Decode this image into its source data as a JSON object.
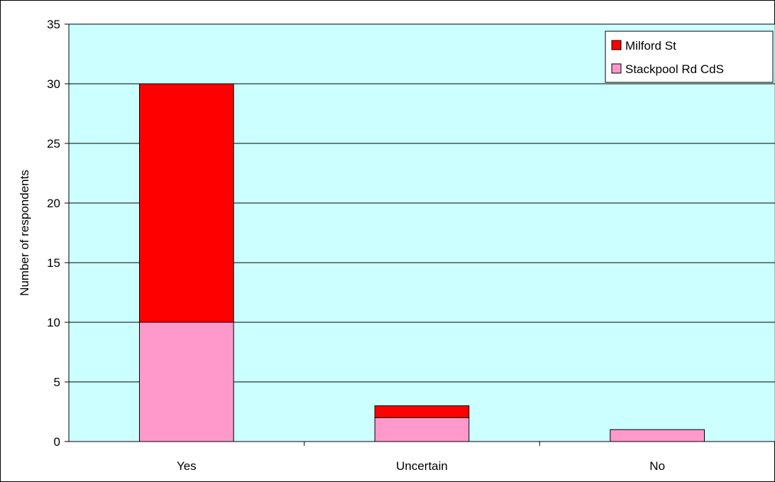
{
  "chart_data": {
    "type": "bar",
    "stacked": true,
    "categories": [
      "Yes",
      "Uncertain",
      "No"
    ],
    "series": [
      {
        "name": "Stackpool Rd CdS",
        "values": [
          10,
          2,
          1
        ],
        "color": "#ff99cc"
      },
      {
        "name": "Milford St",
        "values": [
          20,
          1,
          0
        ],
        "color": "#ff0000"
      }
    ],
    "legend_order": [
      "Milford St",
      "Stackpool Rd CdS"
    ],
    "ylabel": "Number of respondents",
    "xlabel": "",
    "ylim": [
      0,
      35
    ],
    "yticks": [
      0,
      5,
      10,
      15,
      20,
      25,
      30,
      35
    ],
    "grid": true,
    "legend_position": "top-right",
    "plot_background": "#ccffff"
  }
}
